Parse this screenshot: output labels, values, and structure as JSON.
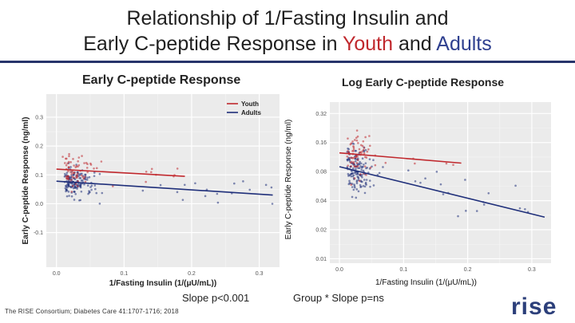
{
  "slide": {
    "title_line1": "Relationship of 1/Fasting Insulin and",
    "title_line2_pre": "Early C-peptide Response in ",
    "title_youth": "Youth",
    "title_and": " and ",
    "title_adults": "Adults",
    "slope_note_left": "Slope p<0.001",
    "slope_note_right": "Group * Slope p=ns",
    "citation": "The RISE Consortium; Diabetes Care 41:1707-1716; 2018",
    "logo": "rise"
  },
  "colors": {
    "youth": "#c0282d",
    "adults": "#1f2f7a",
    "rule": "#27346b"
  },
  "chart_data": [
    {
      "type": "scatter",
      "title": "Early C-peptide Response",
      "xlabel": "1/Fasting Insulin (1/(μU/mL))",
      "ylabel": "Early C-peptide Response (ng/ml)",
      "xlim": [
        -0.015,
        0.33
      ],
      "ylim": [
        -0.22,
        0.38
      ],
      "x_ticks": [
        "0.0",
        "0.1",
        "0.2",
        "0.3"
      ],
      "x_tick_values": [
        0.0,
        0.1,
        0.2,
        0.3
      ],
      "y_ticks": [
        "0.3",
        "0.2",
        "0.1",
        "0.0",
        "-0.1"
      ],
      "y_tick_values": [
        0.3,
        0.2,
        0.1,
        0.0,
        -0.1
      ],
      "legend": {
        "placement": "top-right",
        "entries": [
          "Youth",
          "Adults"
        ]
      },
      "series": [
        {
          "name": "Youth",
          "fit": [
            [
              0.0,
              0.12
            ],
            [
              0.19,
              0.095
            ]
          ]
        },
        {
          "name": "Adults",
          "fit": [
            [
              0.0,
              0.078
            ],
            [
              0.32,
              0.03
            ]
          ]
        }
      ],
      "grid": true
    },
    {
      "type": "scatter",
      "title": "Log Early C-peptide Response",
      "xlabel": "1/Fasting Insulin (1/(μU/mL))",
      "ylabel": "Early C-peptide Response (ng/ml)",
      "yscale": "log",
      "xlim": [
        -0.015,
        0.33
      ],
      "ylim": [
        0.009,
        0.42
      ],
      "x_ticks": [
        "0.0",
        "0.1",
        "0.2",
        "0.3"
      ],
      "x_tick_values": [
        0.0,
        0.1,
        0.2,
        0.3
      ],
      "y_ticks": [
        "0.32",
        "0.16",
        "0.08",
        "0.04",
        "0.02",
        "0.01"
      ],
      "y_tick_values": [
        0.32,
        0.16,
        0.08,
        0.04,
        0.02,
        0.01
      ],
      "series": [
        {
          "name": "Youth",
          "fit": [
            [
              0.0,
              0.125
            ],
            [
              0.19,
              0.098
            ]
          ]
        },
        {
          "name": "Adults",
          "fit": [
            [
              0.0,
              0.09
            ],
            [
              0.32,
              0.027
            ]
          ]
        }
      ],
      "grid": true
    }
  ]
}
